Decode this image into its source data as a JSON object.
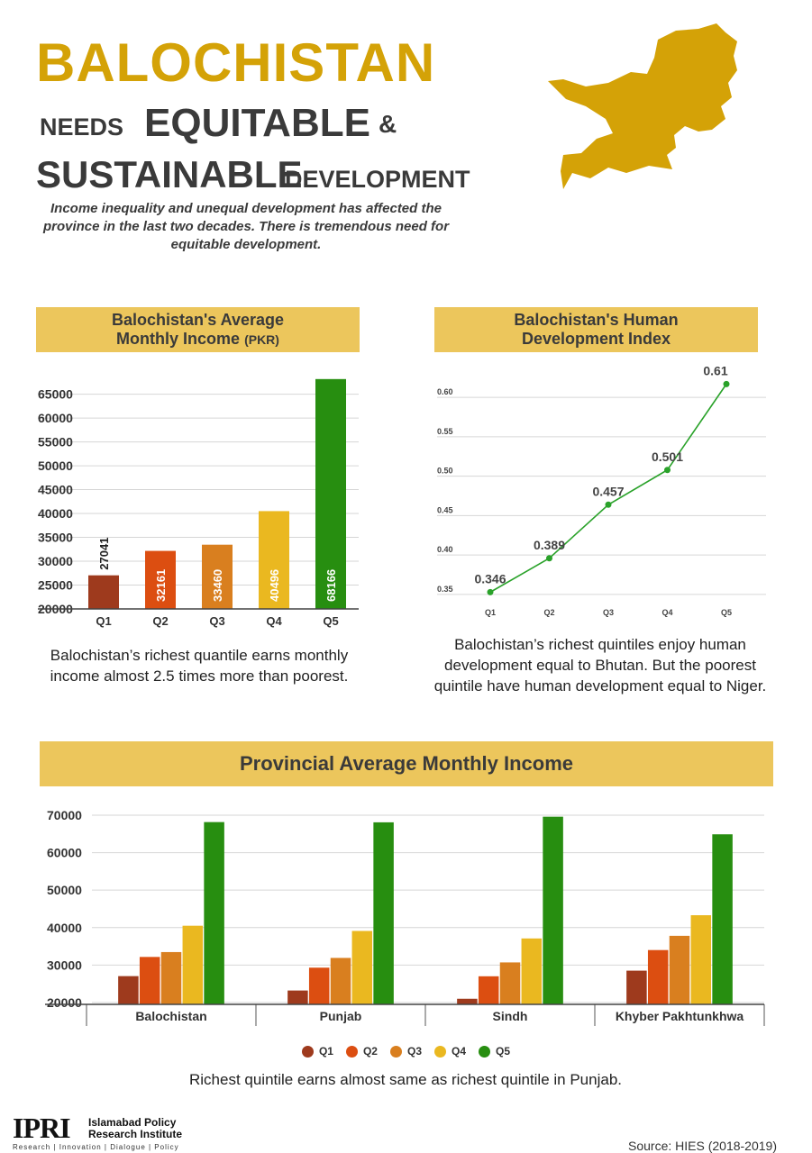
{
  "header": {
    "title": "BALOCHISTAN",
    "line2_small": "NEEDS",
    "line2_big": "EQUITABLE",
    "ampersand": "&",
    "line3_big": "SUSTAINABLE",
    "line3_small": "DEVELOPMENT",
    "intro": "Income inequality and unequal development has affected the province in the last two decades. There is tremendous need for equitable development."
  },
  "colors": {
    "gold": "#d4a207",
    "banner": "#ecc65c",
    "q1": "#9e3a1d",
    "q2": "#dc4e11",
    "q3": "#d97f1f",
    "q4": "#eab820",
    "q5": "#278e10",
    "line": "#2aa22a"
  },
  "income_panel": {
    "title_line1": "Balochistan's Average",
    "title_line2": "Monthly Income",
    "title_unit": "(PKR)",
    "caption": "Balochistan’s richest quantile earns monthly income almost 2.5 times more than poorest."
  },
  "hdi_panel": {
    "title_line1": "Balochistan's Human",
    "title_line2": "Development Index",
    "caption": "Balochistan’s richest quintiles enjoy human development equal to Bhutan. But the poorest quintile have human development equal to Niger."
  },
  "provincial_panel": {
    "title": "Provincial Average Monthly Income",
    "caption": "Richest quintile earns almost same as richest quintile in Punjab."
  },
  "legend": [
    "Q1",
    "Q2",
    "Q3",
    "Q4",
    "Q5"
  ],
  "footer": {
    "logo": "IPRI",
    "institute_line1": "Islamabad Policy",
    "institute_line2": "Research Institute",
    "tagline": "Research | Innovation | Dialogue | Policy",
    "source": "Source: HIES (2018-2019)"
  },
  "chart_data": [
    {
      "type": "bar",
      "title": "Balochistan's Average Monthly Income (PKR)",
      "categories": [
        "Q1",
        "Q2",
        "Q3",
        "Q4",
        "Q5"
      ],
      "values": [
        27041,
        32161,
        33460,
        40496,
        68166
      ],
      "value_labels": [
        "27041",
        "32161",
        "33460",
        "40496",
        "68166"
      ],
      "yticks": [
        20000,
        25000,
        30000,
        35000,
        40000,
        45000,
        50000,
        55000,
        60000,
        65000
      ],
      "ylim": [
        20000,
        67000
      ],
      "grid": true
    },
    {
      "type": "line",
      "title": "Balochistan's Human Development Index",
      "categories": [
        "Q1",
        "Q2",
        "Q3",
        "Q4",
        "Q5"
      ],
      "values": [
        0.346,
        0.389,
        0.457,
        0.501,
        0.61
      ],
      "value_labels": [
        "0.346",
        "0.389",
        "0.457",
        "0.501",
        "0.61"
      ],
      "yticks": [
        "0.35",
        "0.40",
        "0.45",
        "0.50",
        "0.55",
        "0.60"
      ],
      "ylim": [
        0.335,
        0.615
      ],
      "grid": true
    },
    {
      "type": "bar",
      "title": "Provincial Average Monthly Income",
      "categories": [
        "Balochistan",
        "Punjab",
        "Sindh",
        "Khyber Pakhtunkhwa"
      ],
      "series": [
        {
          "name": "Q1",
          "values": [
            27041,
            23200,
            21000,
            28500
          ]
        },
        {
          "name": "Q2",
          "values": [
            32161,
            29300,
            27000,
            34000
          ]
        },
        {
          "name": "Q3",
          "values": [
            33460,
            31900,
            30700,
            37800
          ]
        },
        {
          "name": "Q4",
          "values": [
            40496,
            39100,
            37100,
            43300
          ]
        },
        {
          "name": "Q5",
          "values": [
            68166,
            68100,
            69600,
            64900
          ]
        }
      ],
      "yticks": [
        20000,
        30000,
        40000,
        50000,
        60000,
        70000
      ],
      "ylim": [
        19500,
        70000
      ],
      "legend": "bottom",
      "grid": true
    }
  ]
}
